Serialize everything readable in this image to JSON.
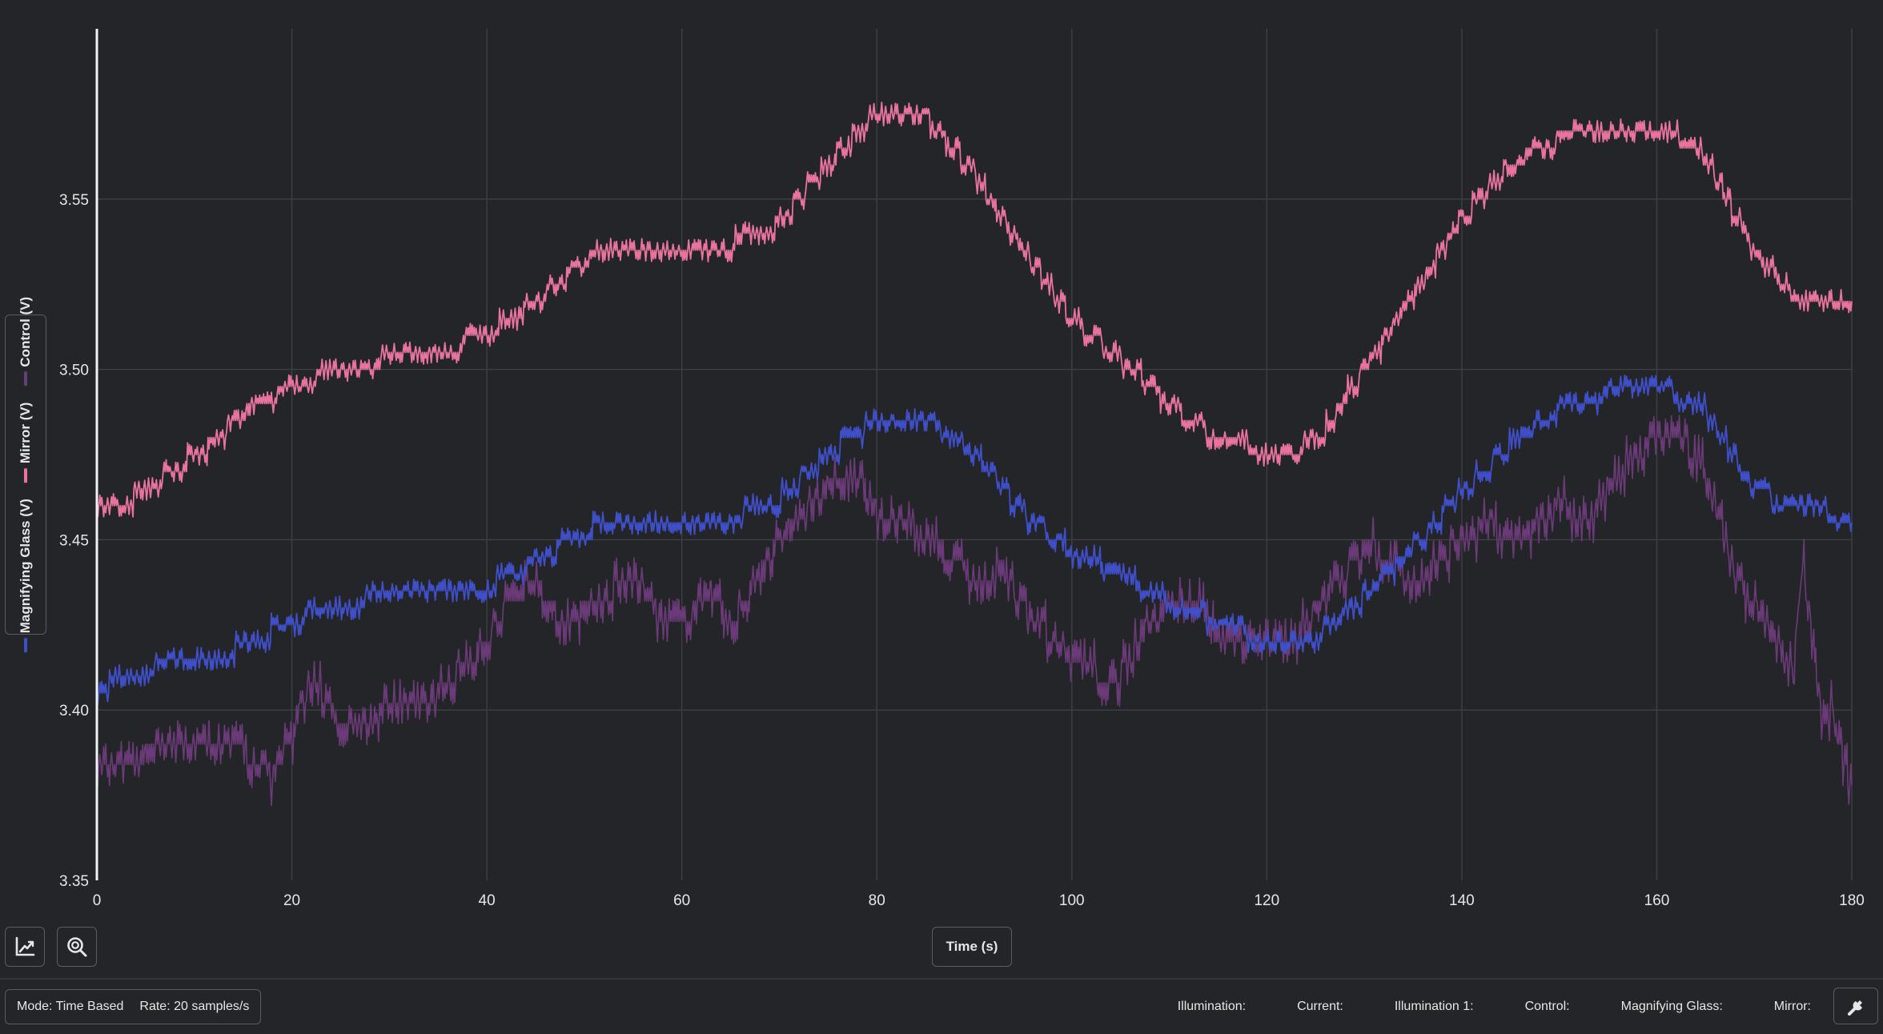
{
  "chart_data": {
    "type": "line",
    "title": "",
    "xlabel": "Time (s)",
    "ylabel": "",
    "xlim": [
      0,
      180
    ],
    "ylim": [
      3.35,
      3.6
    ],
    "x_ticks": [
      0,
      20,
      40,
      60,
      80,
      100,
      120,
      140,
      160,
      180
    ],
    "y_ticks": [
      3.35,
      3.4,
      3.45,
      3.5,
      3.55
    ],
    "y_tick_labels": [
      "3.35",
      "3.40",
      "3.45",
      "3.50",
      "3.55"
    ],
    "grid": true,
    "legend_position": "left-vertical",
    "series": [
      {
        "name": "Magnifying Glass (V)",
        "color": "#3f4fc8",
        "noise": 0.0035,
        "x": [
          0,
          5,
          10,
          15,
          20,
          25,
          30,
          35,
          40,
          45,
          50,
          55,
          60,
          65,
          70,
          75,
          80,
          85,
          90,
          95,
          100,
          105,
          110,
          115,
          120,
          125,
          130,
          135,
          140,
          145,
          150,
          155,
          160,
          165,
          170,
          175,
          180
        ],
        "y": [
          3.406,
          3.412,
          3.415,
          3.418,
          3.426,
          3.432,
          3.433,
          3.434,
          3.436,
          3.444,
          3.452,
          3.455,
          3.455,
          3.456,
          3.462,
          3.475,
          3.485,
          3.486,
          3.475,
          3.458,
          3.446,
          3.44,
          3.432,
          3.426,
          3.42,
          3.421,
          3.433,
          3.448,
          3.464,
          3.478,
          3.488,
          3.493,
          3.495,
          3.488,
          3.465,
          3.458,
          3.457
        ]
      },
      {
        "name": "Mirror (V)",
        "color": "#e8739d",
        "noise": 0.0035,
        "x": [
          0,
          5,
          10,
          15,
          20,
          25,
          30,
          35,
          40,
          45,
          50,
          55,
          60,
          65,
          70,
          75,
          80,
          85,
          90,
          95,
          100,
          105,
          110,
          115,
          120,
          125,
          130,
          135,
          140,
          145,
          150,
          155,
          160,
          165,
          170,
          175,
          180
        ],
        "y": [
          3.458,
          3.464,
          3.474,
          3.487,
          3.495,
          3.5,
          3.503,
          3.505,
          3.51,
          3.52,
          3.532,
          3.537,
          3.537,
          3.537,
          3.543,
          3.56,
          3.575,
          3.574,
          3.558,
          3.535,
          3.515,
          3.503,
          3.49,
          3.48,
          3.476,
          3.478,
          3.5,
          3.522,
          3.544,
          3.56,
          3.568,
          3.572,
          3.572,
          3.562,
          3.535,
          3.518,
          3.52
        ]
      },
      {
        "name": "Control (V)",
        "color": "#6b3a78",
        "noise": 0.007,
        "x": [
          0,
          5,
          10,
          15,
          18,
          20,
          22,
          25,
          30,
          35,
          40,
          42,
          45,
          48,
          50,
          53,
          55,
          58,
          60,
          63,
          65,
          68,
          70,
          75,
          78,
          80,
          83,
          85,
          88,
          90,
          93,
          95,
          100,
          103,
          105,
          108,
          110,
          113,
          115,
          118,
          120,
          123,
          125,
          128,
          130,
          133,
          135,
          138,
          140,
          143,
          145,
          148,
          150,
          153,
          155,
          158,
          160,
          163,
          165,
          168,
          170,
          172,
          174,
          175,
          176,
          177,
          178,
          180
        ],
        "y": [
          3.383,
          3.387,
          3.39,
          3.388,
          3.38,
          3.392,
          3.41,
          3.395,
          3.4,
          3.405,
          3.42,
          3.43,
          3.438,
          3.425,
          3.43,
          3.435,
          3.44,
          3.425,
          3.425,
          3.435,
          3.425,
          3.44,
          3.45,
          3.465,
          3.47,
          3.458,
          3.455,
          3.45,
          3.445,
          3.438,
          3.442,
          3.43,
          3.415,
          3.41,
          3.41,
          3.425,
          3.43,
          3.432,
          3.42,
          3.418,
          3.42,
          3.422,
          3.43,
          3.44,
          3.448,
          3.445,
          3.435,
          3.445,
          3.45,
          3.455,
          3.448,
          3.455,
          3.46,
          3.455,
          3.465,
          3.475,
          3.48,
          3.478,
          3.47,
          3.44,
          3.43,
          3.42,
          3.41,
          3.445,
          3.42,
          3.395,
          3.4,
          3.375
        ]
      }
    ]
  },
  "toolbar": {
    "reset_view_icon": "axes-chart-icon",
    "zoom_icon": "zoom-magnifier-icon"
  },
  "status": {
    "mode": "Mode: Time Based",
    "rate": "Rate: 20 samples/s",
    "illumination": "Illumination:",
    "current": "Current:",
    "illumination_1": "Illumination 1:",
    "control": "Control:",
    "magnifying_glass": "Magnifying Glass:",
    "mirror": "Mirror:",
    "settings_icon": "wrench-icon"
  }
}
